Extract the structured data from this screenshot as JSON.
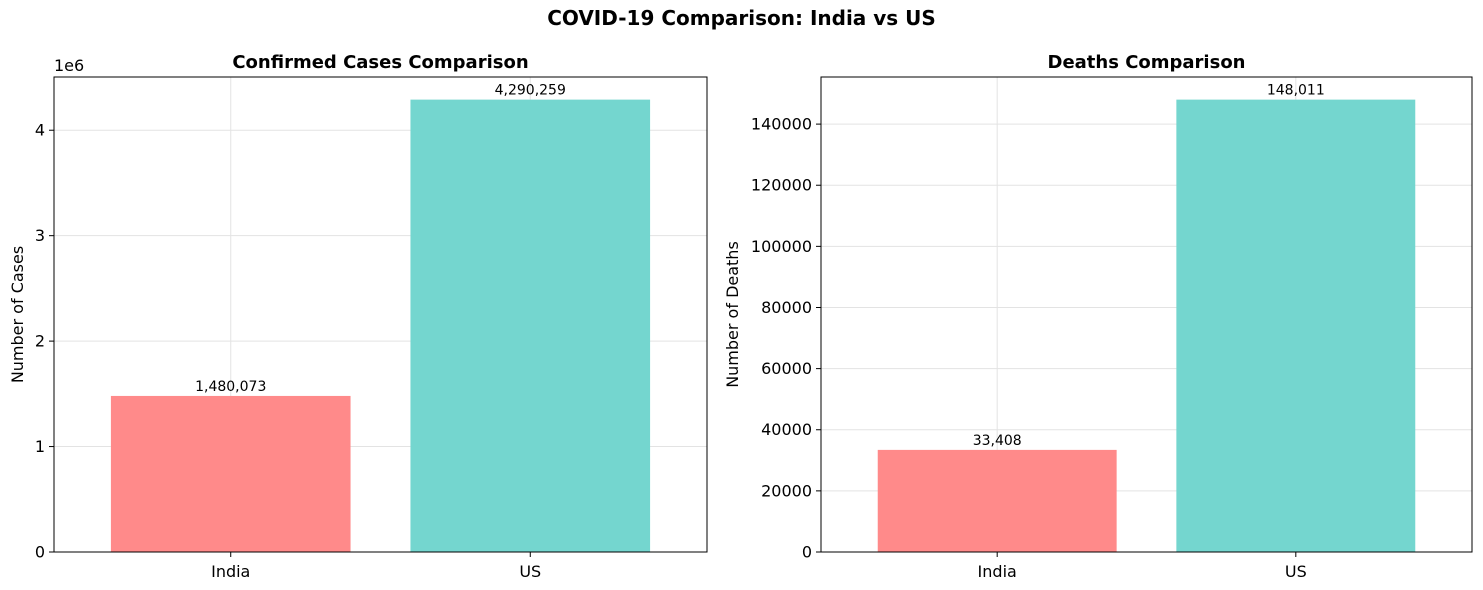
{
  "figure": {
    "title": "COVID-19 Comparison: India vs US"
  },
  "chart_data": [
    {
      "type": "bar",
      "title": "Confirmed Cases Comparison",
      "xlabel": "",
      "ylabel": "Number of Cases",
      "categories": [
        "India",
        "US"
      ],
      "values": [
        1480073,
        4290259
      ],
      "value_labels": [
        "1,480,073",
        "4,290,259"
      ],
      "colors": [
        "#ff8a8a",
        "#74d6cf"
      ],
      "ylim": [
        0,
        4504772
      ],
      "yticks": [
        0,
        1000000,
        2000000,
        3000000,
        4000000
      ],
      "ytick_labels": [
        "0",
        "1",
        "2",
        "3",
        "4"
      ],
      "offset_label": "1e6",
      "grid": true
    },
    {
      "type": "bar",
      "title": "Deaths Comparison",
      "xlabel": "",
      "ylabel": "Number of Deaths",
      "categories": [
        "India",
        "US"
      ],
      "values": [
        33408,
        148011
      ],
      "value_labels": [
        "33,408",
        "148,011"
      ],
      "colors": [
        "#ff8a8a",
        "#74d6cf"
      ],
      "ylim": [
        0,
        155412
      ],
      "yticks": [
        0,
        20000,
        40000,
        60000,
        80000,
        100000,
        120000,
        140000
      ],
      "ytick_labels": [
        "0",
        "20000",
        "40000",
        "60000",
        "80000",
        "100000",
        "120000",
        "140000"
      ],
      "offset_label": "",
      "grid": true
    }
  ]
}
